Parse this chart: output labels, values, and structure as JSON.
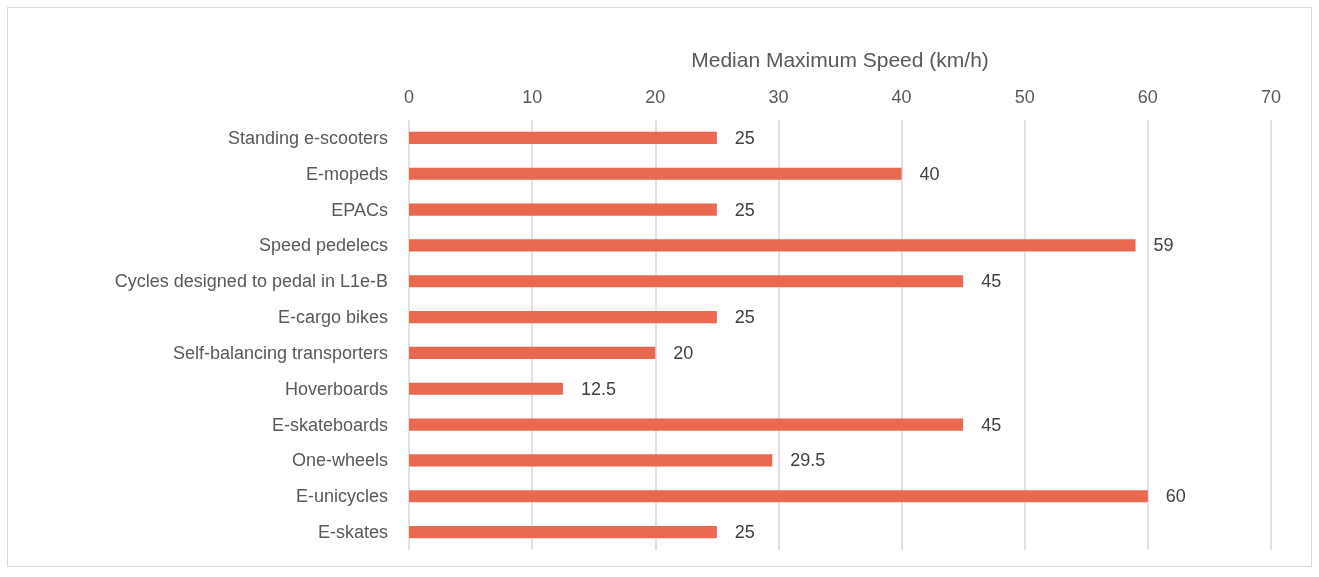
{
  "chart_data": {
    "type": "bar",
    "orientation": "horizontal",
    "xlabel": "Median Maximum Speed (km/h)",
    "categories": [
      "Standing e-scooters",
      "E-mopeds",
      "EPACs",
      "Speed pedelecs",
      "Cycles designed to pedal in L1e-B",
      "E-cargo bikes",
      "Self-balancing transporters",
      "Hoverboards",
      "E-skateboards",
      "One-wheels",
      "E-unicycles",
      "E-skates"
    ],
    "values": [
      25,
      40,
      25,
      59,
      45,
      25,
      20,
      12.5,
      45,
      29.5,
      60,
      25
    ],
    "color": "#e8694f",
    "xlim": [
      0,
      70
    ],
    "xticks": [
      0,
      10,
      20,
      30,
      40,
      50,
      60,
      70
    ],
    "grid": "x",
    "data_labels": true
  }
}
